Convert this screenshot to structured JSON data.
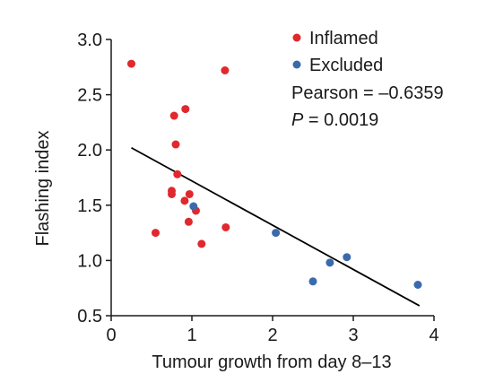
{
  "chart_data": {
    "type": "scatter",
    "xlabel": "Tumour growth from day 8–13",
    "ylabel": "Flashing index",
    "xlim": [
      0,
      4
    ],
    "ylim": [
      0.5,
      3.0
    ],
    "x_ticks": [
      "0",
      "1",
      "2",
      "3",
      "4"
    ],
    "y_ticks": [
      "0.5",
      "1.0",
      "1.5",
      "2.0",
      "2.5",
      "3.0"
    ],
    "grid": false,
    "legend_position": "top-right",
    "series": [
      {
        "name": "Inflamed",
        "color": "#e0282e",
        "points": [
          {
            "x": 0.25,
            "y": 2.78
          },
          {
            "x": 1.41,
            "y": 2.72
          },
          {
            "x": 0.92,
            "y": 2.37
          },
          {
            "x": 0.78,
            "y": 2.31
          },
          {
            "x": 0.8,
            "y": 2.05
          },
          {
            "x": 0.82,
            "y": 1.78
          },
          {
            "x": 0.75,
            "y": 1.63
          },
          {
            "x": 0.75,
            "y": 1.6
          },
          {
            "x": 0.97,
            "y": 1.6
          },
          {
            "x": 0.91,
            "y": 1.54
          },
          {
            "x": 1.05,
            "y": 1.45
          },
          {
            "x": 0.96,
            "y": 1.35
          },
          {
            "x": 1.42,
            "y": 1.3
          },
          {
            "x": 0.55,
            "y": 1.25
          },
          {
            "x": 1.12,
            "y": 1.15
          }
        ]
      },
      {
        "name": "Excluded",
        "color": "#3a6aae",
        "points": [
          {
            "x": 1.02,
            "y": 1.49
          },
          {
            "x": 2.04,
            "y": 1.25
          },
          {
            "x": 2.92,
            "y": 1.03
          },
          {
            "x": 2.71,
            "y": 0.98
          },
          {
            "x": 2.5,
            "y": 0.81
          },
          {
            "x": 3.8,
            "y": 0.78
          }
        ]
      }
    ],
    "regression_line": {
      "x": [
        0.25,
        3.82
      ],
      "y": [
        2.02,
        0.59
      ]
    },
    "stats": {
      "pearson_label": "Pearson = –0.6359",
      "p_symbol": "P",
      "p_rest": " = 0.0019"
    }
  }
}
